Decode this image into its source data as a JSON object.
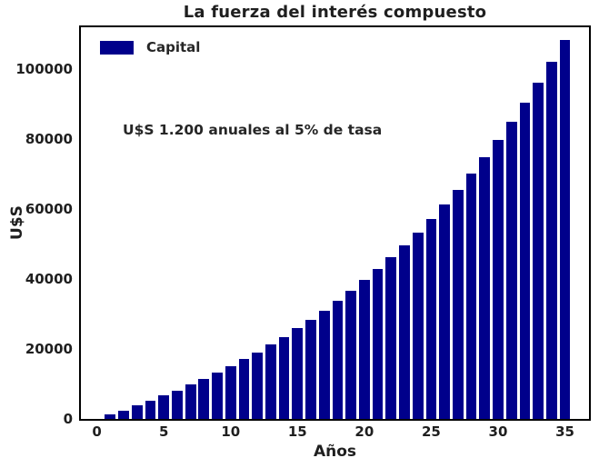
{
  "chart_data": {
    "type": "bar",
    "title": "La fuerza del interés compuesto",
    "xlabel": "Años",
    "ylabel": "U$S",
    "annotation": "U$S 1.200 anuales al 5% de tasa",
    "legend": {
      "label": "Capital",
      "position": "upper-left",
      "frame": false
    },
    "bar_color": "#00008B",
    "text_color": "#1f1f1f",
    "axis_color": "#000000",
    "grid": false,
    "bar_width": 0.8,
    "xlim": [
      -1.2,
      36.8
    ],
    "ylim": [
      0,
      112000
    ],
    "xticks": [
      0,
      5,
      10,
      15,
      20,
      25,
      30,
      35
    ],
    "yticks": [
      0,
      20000,
      40000,
      60000,
      80000,
      100000
    ],
    "x": [
      1,
      2,
      3,
      4,
      5,
      6,
      7,
      8,
      9,
      10,
      11,
      12,
      13,
      14,
      15,
      16,
      17,
      18,
      19,
      20,
      21,
      22,
      23,
      24,
      25,
      26,
      27,
      28,
      29,
      30,
      31,
      32,
      33,
      34,
      35
    ],
    "values": [
      1200,
      2460,
      3783,
      5172,
      6631,
      8162,
      9770,
      11460,
      13232,
      15093,
      17048,
      19101,
      21256,
      23518,
      25894,
      28389,
      31008,
      33759,
      36647,
      39679,
      42863,
      46206,
      49717,
      53402,
      57273,
      61336,
      65603,
      70083,
      74787,
      79727,
      84913,
      90359,
      96077,
      102080,
      108384
    ]
  }
}
